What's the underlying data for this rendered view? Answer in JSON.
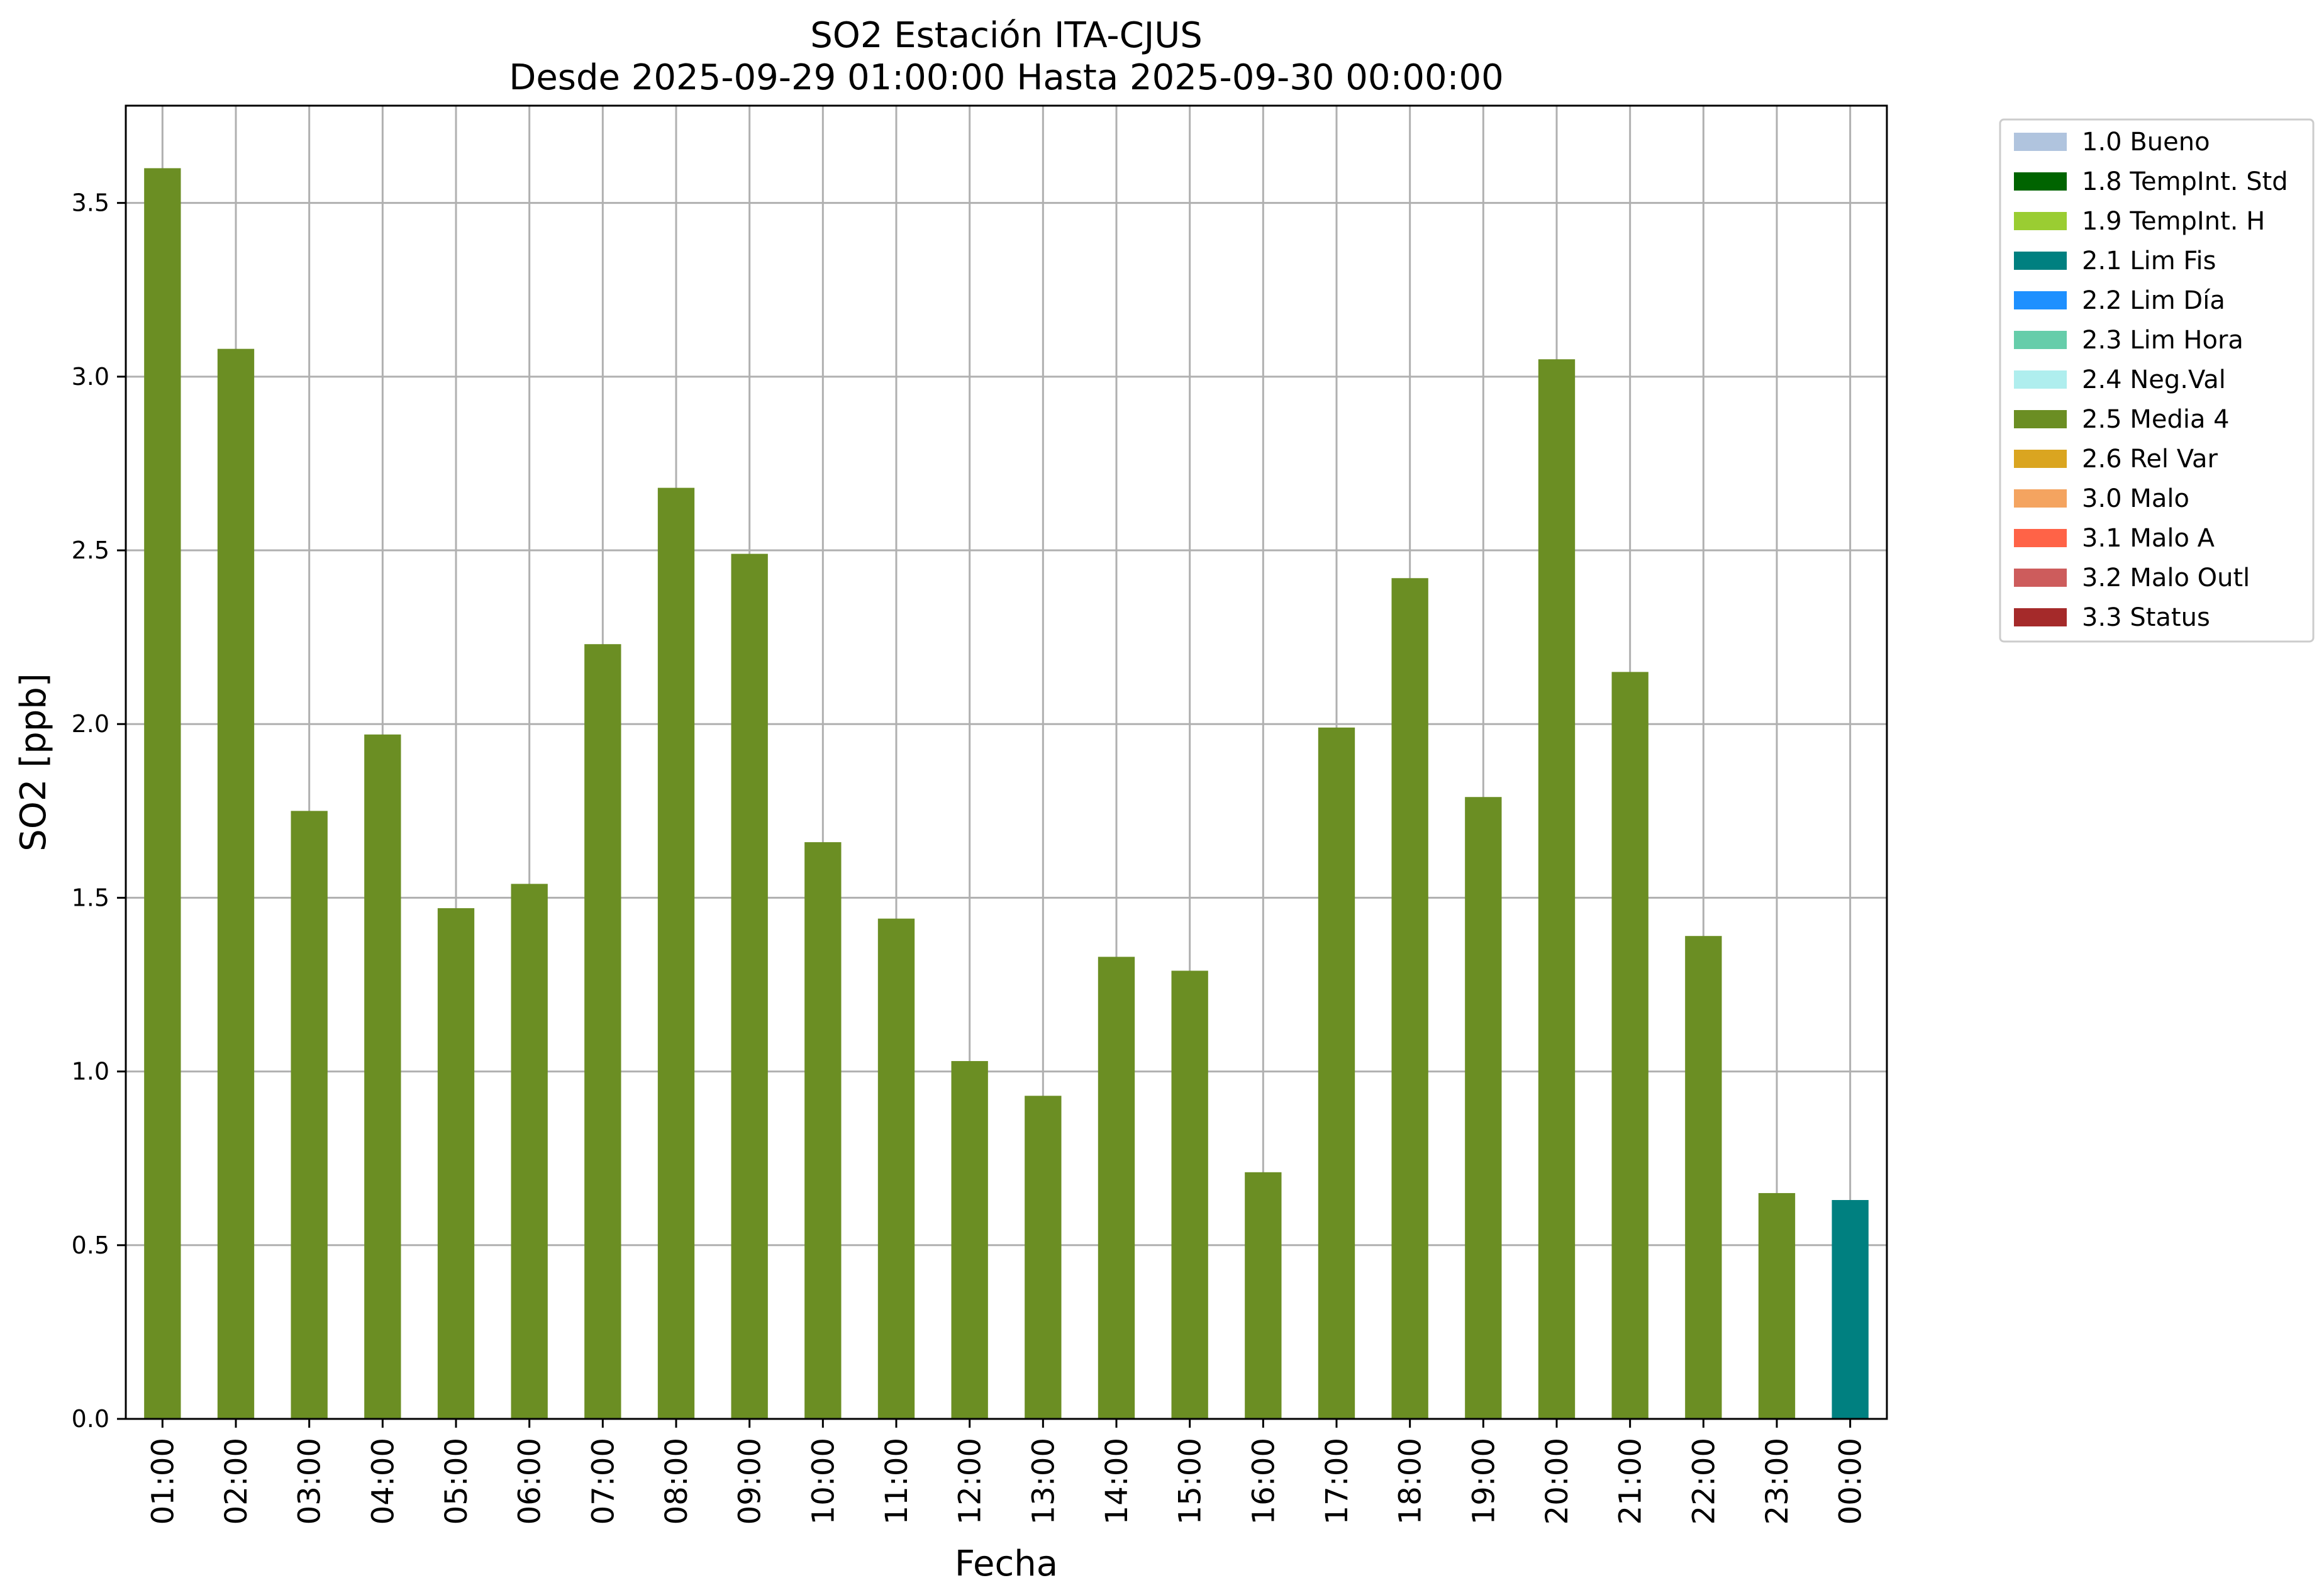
{
  "chart_data": {
    "type": "bar",
    "title": "SO2 Estación ITA-CJUS",
    "subtitle": "Desde 2025-09-29 01:00:00 Hasta 2025-09-30 00:00:00",
    "xlabel": "Fecha",
    "ylabel": "SO2 [ppb]",
    "ylim": [
      0,
      3.78
    ],
    "yticks": [
      "0.0",
      "0.5",
      "1.0",
      "1.5",
      "2.0",
      "2.5",
      "3.0",
      "3.5"
    ],
    "grid": true,
    "legend_position": "outside-right-top",
    "categories": [
      "01:00",
      "02:00",
      "03:00",
      "04:00",
      "05:00",
      "06:00",
      "07:00",
      "08:00",
      "09:00",
      "10:00",
      "11:00",
      "12:00",
      "13:00",
      "14:00",
      "15:00",
      "16:00",
      "17:00",
      "18:00",
      "19:00",
      "20:00",
      "21:00",
      "22:00",
      "23:00",
      "00:00"
    ],
    "values": [
      3.6,
      3.08,
      1.75,
      1.97,
      1.47,
      1.54,
      2.23,
      2.68,
      2.49,
      1.66,
      1.44,
      1.03,
      0.93,
      1.33,
      1.29,
      0.71,
      1.99,
      2.42,
      1.79,
      3.05,
      2.15,
      1.39,
      0.65,
      0.63
    ],
    "flags": [
      "2.5",
      "2.5",
      "2.5",
      "2.5",
      "2.5",
      "2.5",
      "2.5",
      "2.5",
      "2.5",
      "2.5",
      "2.5",
      "2.5",
      "2.5",
      "2.5",
      "2.5",
      "2.5",
      "2.5",
      "2.5",
      "2.5",
      "2.5",
      "2.5",
      "2.5",
      "2.5",
      "2.1"
    ],
    "legend": [
      {
        "code": "1.0",
        "label": "1.0 Bueno",
        "color": "#b0c4de"
      },
      {
        "code": "1.8",
        "label": "1.8 TempInt. Std",
        "color": "#006400"
      },
      {
        "code": "1.9",
        "label": "1.9 TempInt. H",
        "color": "#9acd32"
      },
      {
        "code": "2.1",
        "label": "2.1 Lim Fis",
        "color": "#008080"
      },
      {
        "code": "2.2",
        "label": "2.2 Lim Día",
        "color": "#1e90ff"
      },
      {
        "code": "2.3",
        "label": "2.3 Lim Hora",
        "color": "#66cdaa"
      },
      {
        "code": "2.4",
        "label": "2.4 Neg.Val",
        "color": "#afeeee"
      },
      {
        "code": "2.5",
        "label": "2.5 Media 4",
        "color": "#6b8e23"
      },
      {
        "code": "2.6",
        "label": "2.6 Rel Var",
        "color": "#daa520"
      },
      {
        "code": "3.0",
        "label": "3.0 Malo",
        "color": "#f4a460"
      },
      {
        "code": "3.1",
        "label": "3.1 Malo A",
        "color": "#ff6347"
      },
      {
        "code": "3.2",
        "label": "3.2 Malo Outl",
        "color": "#cd5c5c"
      },
      {
        "code": "3.3",
        "label": "3.3 Status",
        "color": "#a52a2a"
      }
    ]
  }
}
